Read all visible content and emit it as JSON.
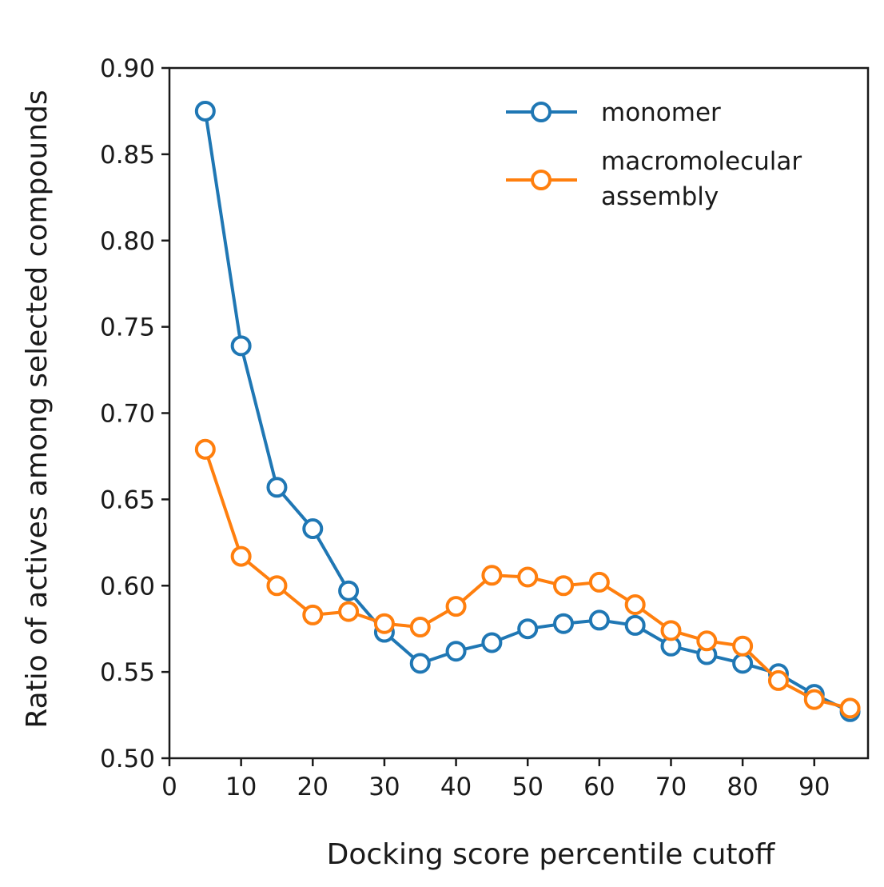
{
  "chart_data": {
    "type": "line",
    "xlabel": "Docking score percentile cutoff",
    "ylabel": "Ratio of actives among selected compounds",
    "xlim": [
      0,
      97.5
    ],
    "ylim": [
      0.5,
      0.9
    ],
    "xticks": [
      0,
      10,
      20,
      30,
      40,
      50,
      60,
      70,
      80,
      90
    ],
    "yticks": [
      0.5,
      0.55,
      0.6,
      0.65,
      0.7,
      0.75,
      0.8,
      0.85,
      0.9
    ],
    "xtick_labels": [
      "0",
      "10",
      "20",
      "30",
      "40",
      "50",
      "60",
      "70",
      "80",
      "90"
    ],
    "ytick_labels": [
      "0.50",
      "0.55",
      "0.60",
      "0.65",
      "0.70",
      "0.75",
      "0.80",
      "0.85",
      "0.90"
    ],
    "grid": false,
    "legend": {
      "position": "top-right",
      "entries": [
        "monomer",
        "macromolecular assembly"
      ]
    },
    "x": [
      5,
      10,
      15,
      20,
      25,
      30,
      35,
      40,
      45,
      50,
      55,
      60,
      65,
      70,
      75,
      80,
      85,
      90,
      95
    ],
    "series": [
      {
        "name": "monomer",
        "color": "#1f77b4",
        "marker": "open-circle",
        "values": [
          0.875,
          0.739,
          0.657,
          0.633,
          0.597,
          0.573,
          0.555,
          0.562,
          0.567,
          0.575,
          0.578,
          0.58,
          0.577,
          0.565,
          0.56,
          0.555,
          0.549,
          0.537,
          0.527
        ]
      },
      {
        "name": "macromolecular assembly",
        "legend_lines": [
          "macromolecular",
          "assembly"
        ],
        "color": "#ff7f0e",
        "marker": "open-circle",
        "values": [
          0.679,
          0.617,
          0.6,
          0.583,
          0.585,
          0.578,
          0.576,
          0.588,
          0.606,
          0.605,
          0.6,
          0.602,
          0.589,
          0.574,
          0.568,
          0.565,
          0.545,
          0.534,
          0.529
        ]
      }
    ]
  }
}
